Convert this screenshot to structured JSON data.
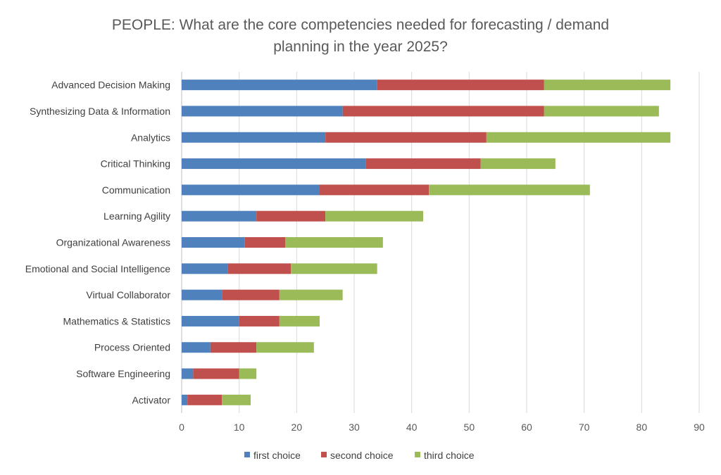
{
  "chart_data": {
    "type": "bar",
    "orientation": "horizontal",
    "stacked": true,
    "title_lines": [
      "PEOPLE: What are the core competencies needed for forecasting / demand",
      "planning in the year 2025?"
    ],
    "categories": [
      "Advanced Decision Making",
      "Synthesizing Data & Information",
      "Analytics",
      "Critical Thinking",
      "Communication",
      "Learning Agility",
      "Organizational Awareness",
      "Emotional and Social Intelligence",
      "Virtual Collaborator",
      "Mathematics & Statistics",
      "Process Oriented",
      "Software Engineering",
      "Activator"
    ],
    "series": [
      {
        "name": "first choice",
        "color": "#4f81bd",
        "values": [
          34,
          28,
          25,
          32,
          24,
          13,
          11,
          8,
          7,
          10,
          5,
          2,
          1
        ]
      },
      {
        "name": "second choice",
        "color": "#c0504d",
        "values": [
          29,
          35,
          28,
          20,
          19,
          12,
          7,
          11,
          10,
          7,
          8,
          8,
          6
        ]
      },
      {
        "name": "third choice",
        "color": "#9bbb59",
        "values": [
          22,
          20,
          32,
          13,
          28,
          17,
          17,
          15,
          11,
          7,
          10,
          3,
          5
        ]
      }
    ],
    "xlim": [
      0,
      90
    ],
    "xticks": [
      "0",
      "10",
      "20",
      "30",
      "40",
      "50",
      "60",
      "70",
      "80",
      "90"
    ],
    "xlabel": "",
    "ylabel": "",
    "grid": "vertical",
    "legend": "bottom"
  }
}
